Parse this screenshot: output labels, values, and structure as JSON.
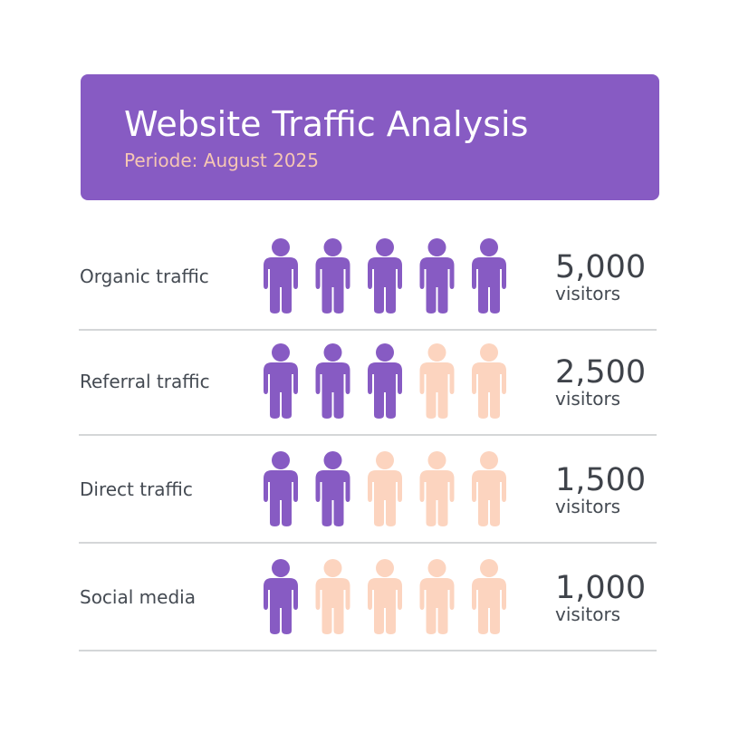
{
  "chart_data": {
    "type": "pictogram",
    "title": "Website Traffic Analysis",
    "subtitle": "Periode: August 2025",
    "categories": [
      "Organic traffic",
      "Referral traffic",
      "Direct traffic",
      "Social media"
    ],
    "values": [
      5000,
      2500,
      1500,
      1000
    ],
    "value_labels": [
      "5,000",
      "2,500",
      "1,500",
      "1,000"
    ],
    "unit": "visitors",
    "icons_filled": [
      5,
      3,
      2,
      1
    ],
    "icons_total": 5,
    "header_color": "#875bc3",
    "filled_color": "#875bc3",
    "empty_color": "#fcd4bf"
  }
}
